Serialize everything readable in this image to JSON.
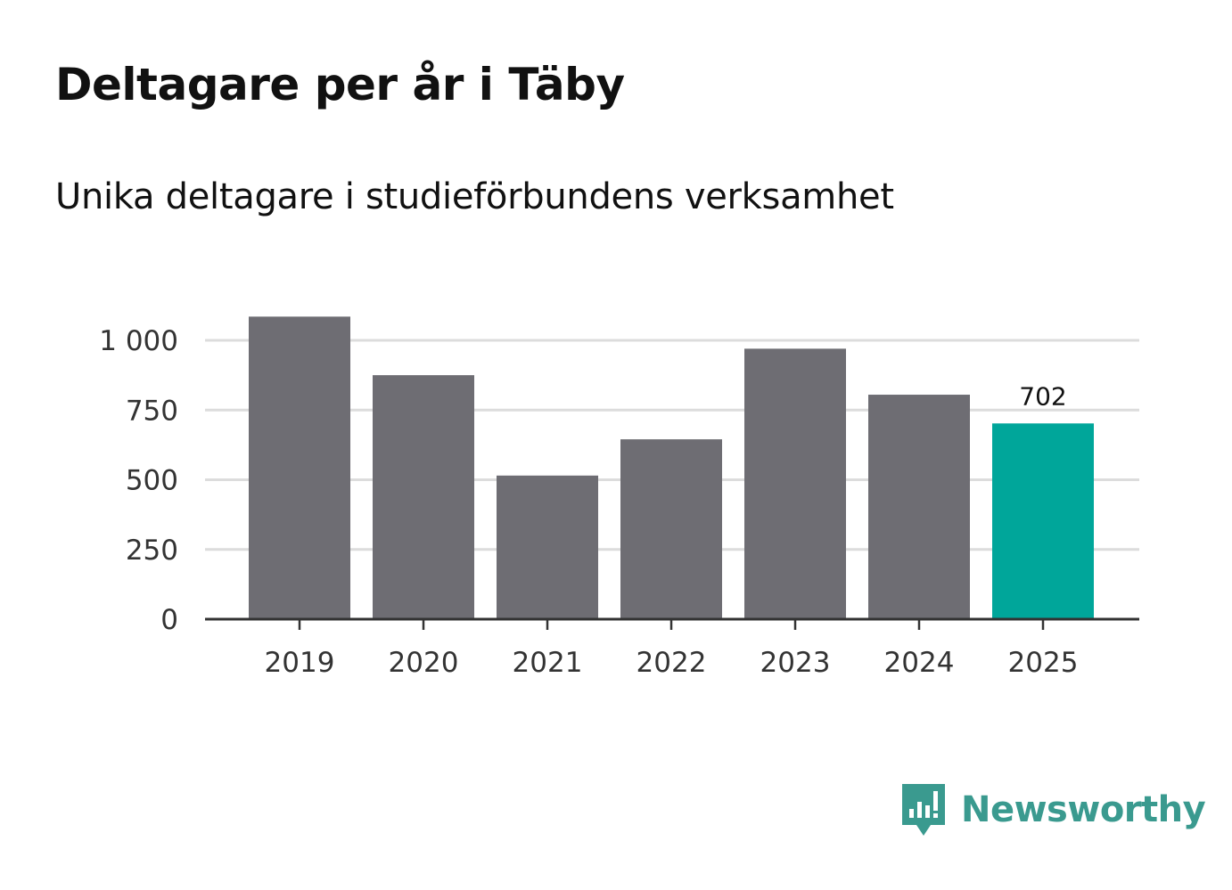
{
  "header": {
    "title": "Deltagare per år i Täby",
    "subtitle": "Unika deltagare i studieförbundens verksamhet"
  },
  "brand": {
    "name": "Newsworthy",
    "icon": "newsworthy-logo-icon",
    "color": "#3a9a8f"
  },
  "colors": {
    "bar": "#6e6d73",
    "highlight": "#00a69a",
    "grid": "#dcdcdc",
    "axis": "#333333"
  },
  "chart_data": {
    "type": "bar",
    "title": "Deltagare per år i Täby",
    "subtitle": "Unika deltagare i studieförbundens verksamhet",
    "categories": [
      "2019",
      "2020",
      "2021",
      "2022",
      "2023",
      "2024",
      "2025"
    ],
    "values": [
      1085,
      875,
      515,
      645,
      970,
      805,
      702
    ],
    "highlight_index": 6,
    "data_labels": [
      {
        "index": 6,
        "text": "702"
      }
    ],
    "ylim": [
      0,
      1000
    ],
    "yticks": [
      0,
      250,
      500,
      750,
      1000
    ],
    "ytick_labels": [
      "0",
      "250",
      "500",
      "750",
      "1 000"
    ],
    "xlabel": "",
    "ylabel": "",
    "grid": true
  }
}
